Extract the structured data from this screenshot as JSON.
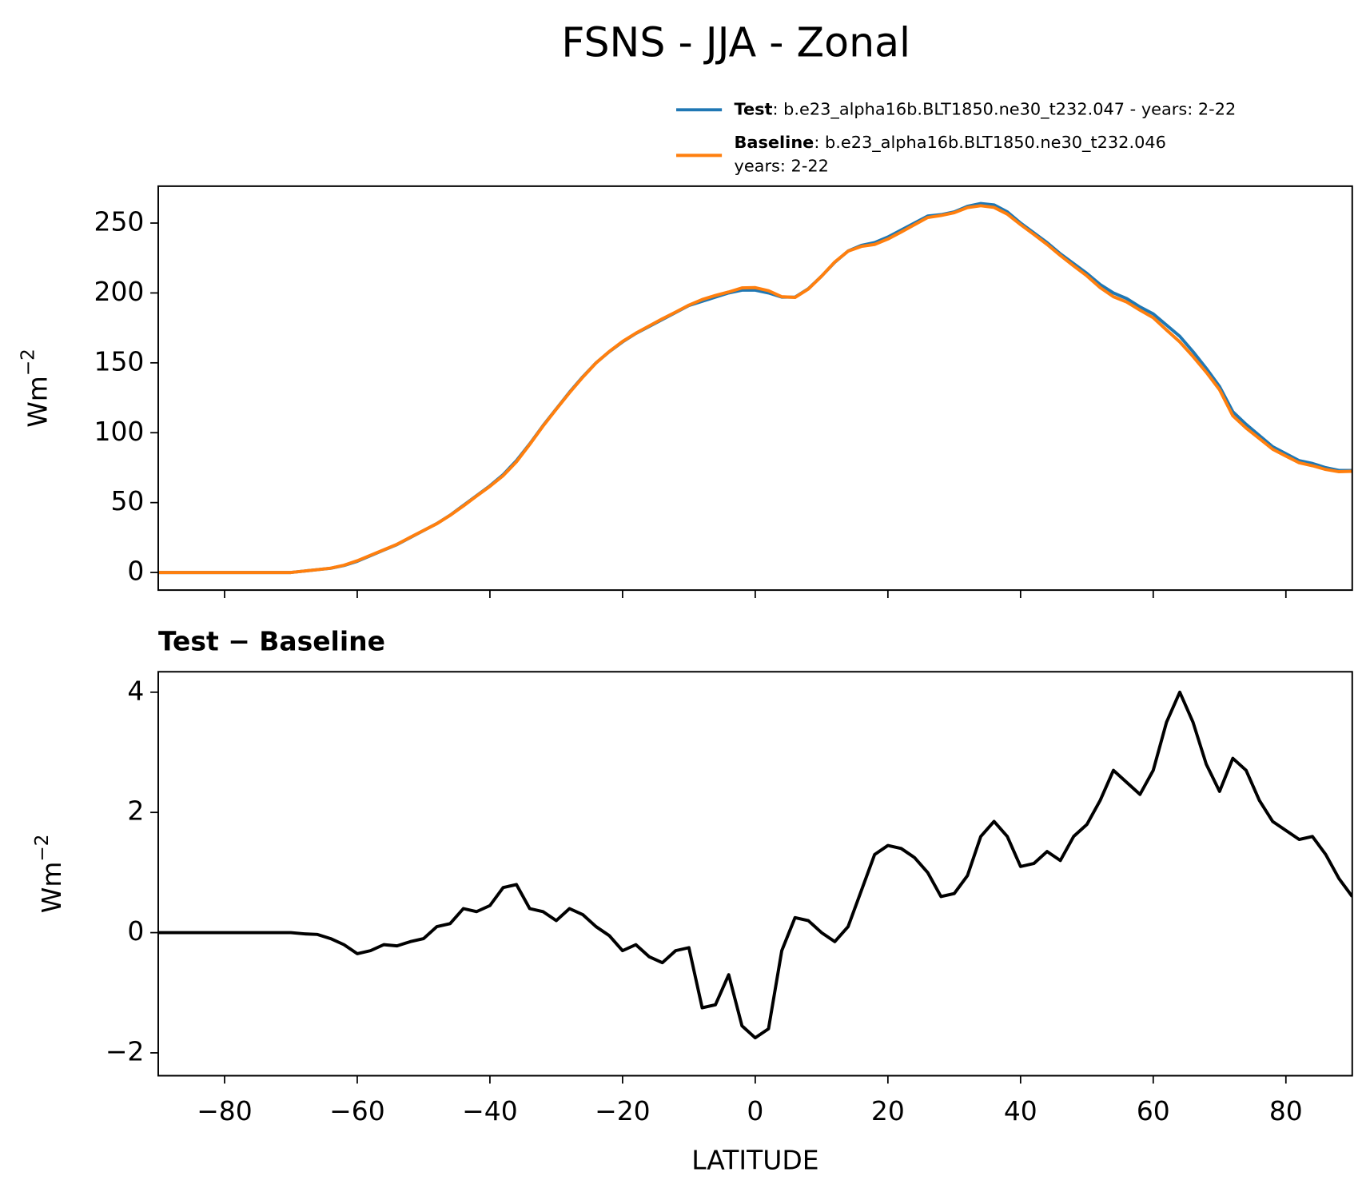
{
  "chart_data": [
    {
      "type": "line",
      "title": "FSNS - JJA - Zonal",
      "y_label": "Wm",
      "y_label_exponent": "−2",
      "x": [
        -90,
        -88,
        -86,
        -84,
        -82,
        -80,
        -78,
        -76,
        -74,
        -72,
        -70,
        -68,
        -66,
        -64,
        -62,
        -60,
        -58,
        -56,
        -54,
        -52,
        -50,
        -48,
        -46,
        -44,
        -42,
        -40,
        -38,
        -36,
        -34,
        -32,
        -30,
        -28,
        -26,
        -24,
        -22,
        -20,
        -18,
        -16,
        -14,
        -12,
        -10,
        -8,
        -6,
        -4,
        -2,
        0,
        2,
        4,
        6,
        8,
        10,
        12,
        14,
        16,
        18,
        20,
        22,
        24,
        26,
        28,
        30,
        32,
        34,
        36,
        38,
        40,
        42,
        44,
        46,
        48,
        50,
        52,
        54,
        56,
        58,
        60,
        62,
        64,
        66,
        68,
        70,
        72,
        74,
        76,
        78,
        80,
        82,
        84,
        86,
        88,
        90
      ],
      "series": [
        {
          "name": "Test",
          "detail": ": b.e23_alpha16b.BLT1850.ne30_t232.047 - years: 2-22",
          "color": "#1f77b4",
          "values": [
            0,
            0,
            0,
            0,
            0,
            0,
            0,
            0,
            0,
            0,
            0,
            1,
            2,
            3,
            5,
            8,
            12,
            16,
            20,
            25,
            30,
            35,
            41,
            48,
            55,
            62,
            70,
            80,
            92,
            105,
            117,
            129,
            140,
            150,
            158,
            165,
            171,
            176,
            181,
            186,
            191,
            194,
            197,
            200,
            202,
            202,
            200,
            197,
            197,
            203,
            212,
            222,
            230,
            234,
            236,
            240,
            245,
            250,
            255,
            256,
            258,
            262,
            264,
            263,
            258,
            250,
            243,
            236,
            228,
            221,
            214,
            206,
            200,
            196,
            190,
            185,
            177,
            169,
            158,
            146,
            133,
            115,
            106,
            98,
            90,
            85,
            80,
            78,
            75,
            73,
            73
          ]
        },
        {
          "name": "Baseline",
          "detail": ": b.e23_alpha16b.BLT1850.ne30_t232.046",
          "detail2": "years: 2-22",
          "color": "#ff7f0e",
          "values": [
            0,
            0,
            0,
            0,
            0,
            0,
            0,
            0,
            0,
            0,
            0,
            1.0,
            2.0,
            3.1,
            5.2,
            8.4,
            12.3,
            16.2,
            20.2,
            25.2,
            30.1,
            34.9,
            40.9,
            47.6,
            54.7,
            61.6,
            69.3,
            79.2,
            91.6,
            104.7,
            116.8,
            128.6,
            139.7,
            149.9,
            158.1,
            165.3,
            171.2,
            176.4,
            181.5,
            186.3,
            191.3,
            195.3,
            198.2,
            200.7,
            203.6,
            203.8,
            201.6,
            197.3,
            196.8,
            202.8,
            212,
            222.2,
            229.9,
            233.3,
            234.7,
            238.6,
            243.6,
            248.8,
            254,
            255.4,
            257.4,
            261.1,
            262.4,
            261.2,
            256.4,
            248.9,
            241.9,
            234.7,
            226.8,
            219.4,
            212.2,
            203.8,
            197.3,
            193.5,
            187.7,
            182.3,
            173.5,
            165,
            154.5,
            143.2,
            130.7,
            112.1,
            103.3,
            95.8,
            88.2,
            83.3,
            78.5,
            76.4,
            73.7,
            72.1,
            72.4
          ]
        }
      ],
      "xlim": [
        -90,
        90
      ],
      "xticks": [
        -80,
        -60,
        -40,
        -20,
        0,
        20,
        40,
        60,
        80
      ],
      "ylim": [
        -12.6,
        276.4
      ],
      "yticks": [
        0,
        50,
        100,
        150,
        200,
        250
      ]
    },
    {
      "type": "line",
      "title": "Test − Baseline",
      "x_label": "LATITUDE",
      "y_label": "Wm",
      "y_label_exponent": "−2",
      "color": "#000000",
      "x": [
        -90,
        -88,
        -86,
        -84,
        -82,
        -80,
        -78,
        -76,
        -74,
        -72,
        -70,
        -68,
        -66,
        -64,
        -62,
        -60,
        -58,
        -56,
        -54,
        -52,
        -50,
        -48,
        -46,
        -44,
        -42,
        -40,
        -38,
        -36,
        -34,
        -32,
        -30,
        -28,
        -26,
        -24,
        -22,
        -20,
        -18,
        -16,
        -14,
        -12,
        -10,
        -8,
        -6,
        -4,
        -2,
        0,
        2,
        4,
        6,
        8,
        10,
        12,
        14,
        16,
        18,
        20,
        22,
        24,
        26,
        28,
        30,
        32,
        34,
        36,
        38,
        40,
        42,
        44,
        46,
        48,
        50,
        52,
        54,
        56,
        58,
        60,
        62,
        64,
        66,
        68,
        70,
        72,
        74,
        76,
        78,
        80,
        82,
        84,
        86,
        88,
        90
      ],
      "values": [
        0,
        0,
        0,
        0,
        0,
        0,
        0,
        0,
        0,
        0,
        0,
        -0.02,
        -0.03,
        -0.1,
        -0.2,
        -0.35,
        -0.3,
        -0.2,
        -0.22,
        -0.15,
        -0.1,
        0.1,
        0.15,
        0.4,
        0.35,
        0.45,
        0.75,
        0.8,
        0.4,
        0.35,
        0.2,
        0.4,
        0.3,
        0.1,
        -0.05,
        -0.3,
        -0.2,
        -0.4,
        -0.5,
        -0.3,
        -0.25,
        -1.25,
        -1.2,
        -0.7,
        -1.55,
        -1.75,
        -1.6,
        -0.3,
        0.25,
        0.2,
        0,
        -0.15,
        0.1,
        0.7,
        1.3,
        1.45,
        1.4,
        1.25,
        1.0,
        0.6,
        0.65,
        0.95,
        1.6,
        1.85,
        1.6,
        1.1,
        1.15,
        1.35,
        1.2,
        1.6,
        1.8,
        2.2,
        2.7,
        2.5,
        2.3,
        2.7,
        3.5,
        4.0,
        3.5,
        2.8,
        2.35,
        2.9,
        2.7,
        2.2,
        1.85,
        1.7,
        1.55,
        1.6,
        1.3,
        0.9,
        0.6
      ],
      "xlim": [
        -90,
        90
      ],
      "xticks": [
        {
          "value": -80,
          "label": "−80"
        },
        {
          "value": -60,
          "label": "−60"
        },
        {
          "value": -40,
          "label": "−40"
        },
        {
          "value": -20,
          "label": "−20"
        },
        0,
        20,
        40,
        60,
        80
      ],
      "ylim": [
        -2.38,
        4.34
      ],
      "yticks": [
        {
          "value": -2,
          "label": "−2"
        },
        0,
        2,
        4
      ]
    }
  ]
}
